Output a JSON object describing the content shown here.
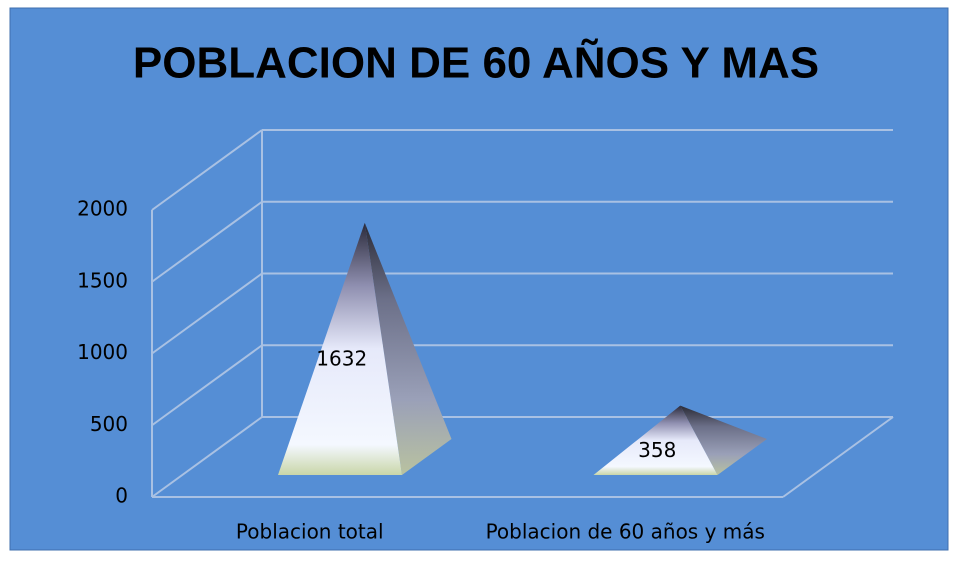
{
  "chart_data": {
    "type": "pyramid3d",
    "title": "POBLACION DE 60 AÑOS Y MAS",
    "categories": [
      "Poblacion total",
      "Poblacion de 60 años y más"
    ],
    "values": [
      1632,
      358
    ],
    "ylim": [
      0,
      2000
    ],
    "yticks": [
      0,
      500,
      1000,
      1500,
      2000
    ],
    "grid": true
  }
}
